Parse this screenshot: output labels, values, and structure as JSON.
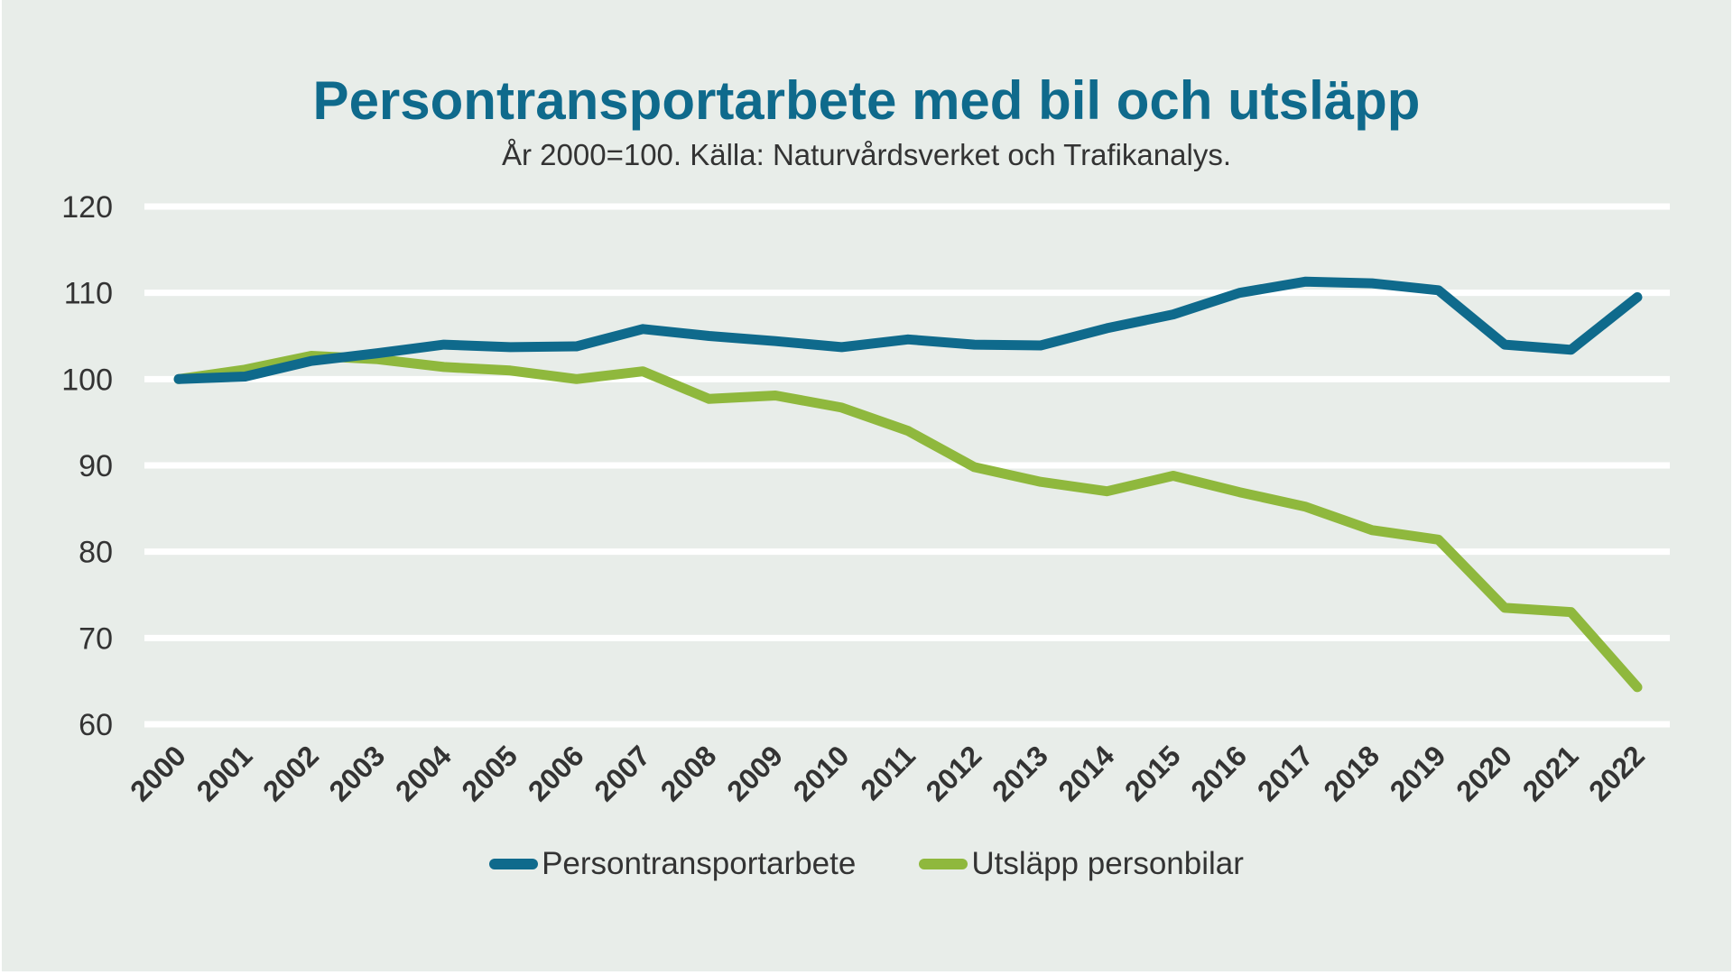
{
  "chart_data": {
    "type": "line",
    "title": "Persontransportarbete med bil och utsläpp",
    "subtitle": "År 2000=100. Källa: Naturvårdsverket och Trafikanalys.",
    "xlabel": "",
    "ylabel": "",
    "x": [
      "2000",
      "2001",
      "2002",
      "2003",
      "2004",
      "2005",
      "2006",
      "2007",
      "2008",
      "2009",
      "2010",
      "2011",
      "2012",
      "2013",
      "2014",
      "2015",
      "2016",
      "2017",
      "2018",
      "2019",
      "2020",
      "2021",
      "2022"
    ],
    "ylim": [
      60,
      120
    ],
    "yticks": [
      "60",
      "70",
      "80",
      "90",
      "100",
      "110",
      "120"
    ],
    "grid": true,
    "legend_position": "bottom",
    "series": [
      {
        "name": "Persontransportarbete",
        "color": "#0f6a8c",
        "values": [
          100,
          100.3,
          102.1,
          103,
          104,
          103.7,
          103.8,
          105.8,
          105,
          104.4,
          103.7,
          104.6,
          104,
          103.9,
          105.9,
          107.5,
          110,
          111.3,
          111.1,
          110.3,
          104,
          103.4,
          109.5
        ]
      },
      {
        "name": "Utsläpp personbilar",
        "color": "#8fb83d",
        "values": [
          100,
          101.1,
          102.7,
          102.3,
          101.4,
          101,
          100,
          100.9,
          97.7,
          98.1,
          96.7,
          94,
          89.8,
          88.1,
          87,
          88.8,
          86.9,
          85.2,
          82.5,
          81.4,
          73.5,
          73,
          64.3
        ]
      }
    ]
  }
}
